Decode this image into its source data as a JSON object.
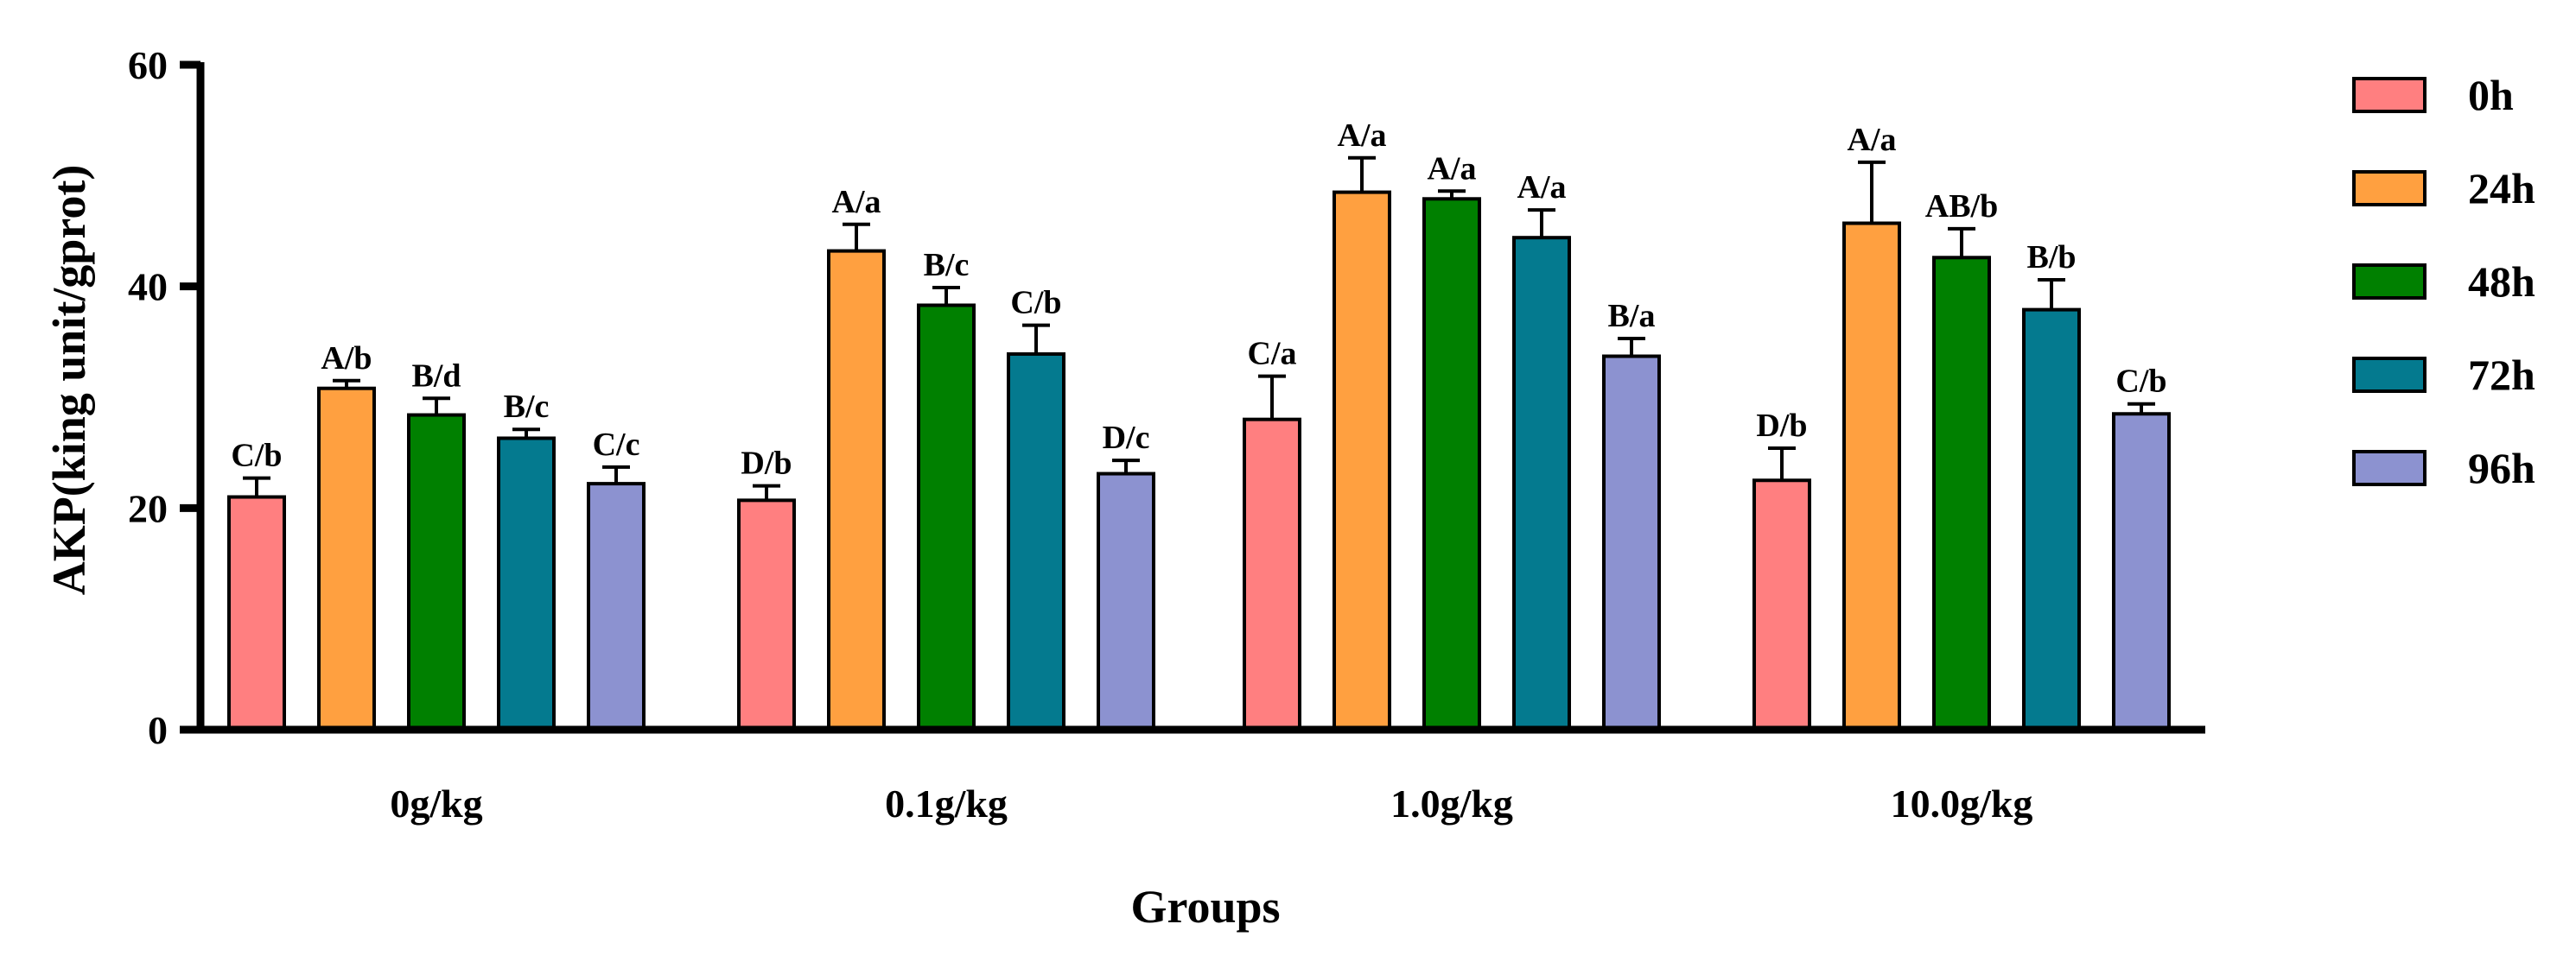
{
  "chart_data": {
    "type": "bar",
    "title": "",
    "xlabel": "Groups",
    "ylabel": "AKP(king unit/gprot)",
    "ylim": [
      0,
      60
    ],
    "yticks": [
      0,
      20,
      40,
      60
    ],
    "grid": false,
    "legend_position": "right",
    "categories": [
      "0g/kg",
      "0.1g/kg",
      "1.0g/kg",
      "10.0g/kg"
    ],
    "series": [
      {
        "name": "0h",
        "color": "#FF7F80",
        "values": [
          21.0,
          20.7,
          28.0,
          22.5
        ],
        "errors": [
          1.7,
          1.3,
          3.9,
          2.9
        ],
        "letters": [
          "C/b",
          "D/b",
          "C/a",
          "D/b"
        ]
      },
      {
        "name": "24h",
        "color": "#FFA040",
        "values": [
          30.8,
          43.2,
          48.5,
          45.7
        ],
        "errors": [
          0.7,
          2.4,
          3.1,
          5.5
        ],
        "letters": [
          "A/b",
          "A/a",
          "A/a",
          "A/a"
        ]
      },
      {
        "name": "48h",
        "color": "#008000",
        "values": [
          28.4,
          38.3,
          47.9,
          42.6
        ],
        "errors": [
          1.5,
          1.6,
          0.7,
          2.6
        ],
        "letters": [
          "B/d",
          "B/c",
          "A/a",
          "AB/b"
        ]
      },
      {
        "name": "72h",
        "color": "#047A8F",
        "values": [
          26.3,
          33.9,
          44.4,
          37.9
        ],
        "errors": [
          0.8,
          2.6,
          2.5,
          2.7
        ],
        "letters": [
          "B/c",
          "C/b",
          "A/a",
          "B/b"
        ]
      },
      {
        "name": "96h",
        "color": "#8C92D0",
        "values": [
          22.2,
          23.1,
          33.7,
          28.5
        ],
        "errors": [
          1.5,
          1.2,
          1.6,
          0.9
        ],
        "letters": [
          "C/c",
          "D/c",
          "B/a",
          "C/b"
        ]
      }
    ]
  }
}
